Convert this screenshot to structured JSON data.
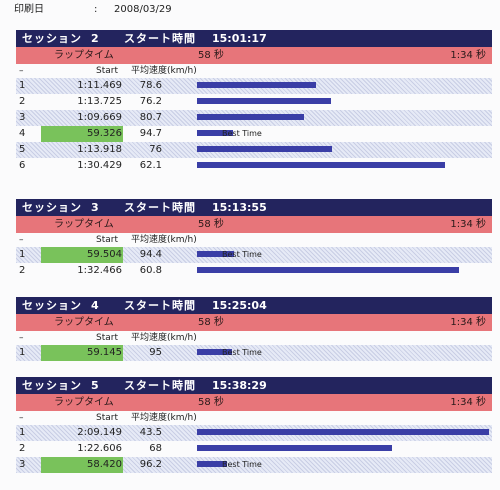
{
  "print": {
    "label": "印刷日",
    "colon": ":",
    "date": "2008/03/29"
  },
  "columns": {
    "dash": "–",
    "start": "Start",
    "speed": "平均速度(km/h)"
  },
  "lap": {
    "label": "ラップタイム",
    "best": "58 秒",
    "worst": "1:34 秒"
  },
  "best_label": "Best Time",
  "sessions": [
    {
      "title": "セッション",
      "number": "2",
      "start_label": "スタート時間",
      "start_time": "15:01:17",
      "laps": [
        {
          "no": "1",
          "time": "1:11.469",
          "speed": "78.6",
          "speed_kmh": 78.6,
          "best": false
        },
        {
          "no": "2",
          "time": "1:13.725",
          "speed": "76.2",
          "speed_kmh": 76.2,
          "best": false
        },
        {
          "no": "3",
          "time": "1:09.669",
          "speed": "80.7",
          "speed_kmh": 80.7,
          "best": false
        },
        {
          "no": "4",
          "time": "59.326",
          "speed": "94.7",
          "speed_kmh": 94.7,
          "best": true
        },
        {
          "no": "5",
          "time": "1:13.918",
          "speed": "76",
          "speed_kmh": 76,
          "best": false
        },
        {
          "no": "6",
          "time": "1:30.429",
          "speed": "62.1",
          "speed_kmh": 62.1,
          "best": false
        }
      ]
    },
    {
      "title": "セッション",
      "number": "3",
      "start_label": "スタート時間",
      "start_time": "15:13:55",
      "laps": [
        {
          "no": "1",
          "time": "59.504",
          "speed": "94.4",
          "speed_kmh": 94.4,
          "best": true
        },
        {
          "no": "2",
          "time": "1:32.466",
          "speed": "60.8",
          "speed_kmh": 60.8,
          "best": false
        }
      ]
    },
    {
      "title": "セッション",
      "number": "4",
      "start_label": "スタート時間",
      "start_time": "15:25:04",
      "laps": [
        {
          "no": "1",
          "time": "59.145",
          "speed": "95",
          "speed_kmh": 95,
          "best": true
        }
      ]
    },
    {
      "title": "セッション",
      "number": "5",
      "start_label": "スタート時間",
      "start_time": "15:38:29",
      "laps": [
        {
          "no": "1",
          "time": "2:09.149",
          "speed": "43.5",
          "speed_kmh": 43.5,
          "best": false
        },
        {
          "no": "2",
          "time": "1:22.606",
          "speed": "68",
          "speed_kmh": 68,
          "best": false
        },
        {
          "no": "3",
          "time": "58.420",
          "speed": "96.2",
          "speed_kmh": 96.2,
          "best": true
        }
      ]
    }
  ],
  "colors": {
    "header": "#23245e",
    "lap_band": "#e7757a",
    "best_highlight": "#79c25b",
    "bar": "#3a3ea6"
  }
}
